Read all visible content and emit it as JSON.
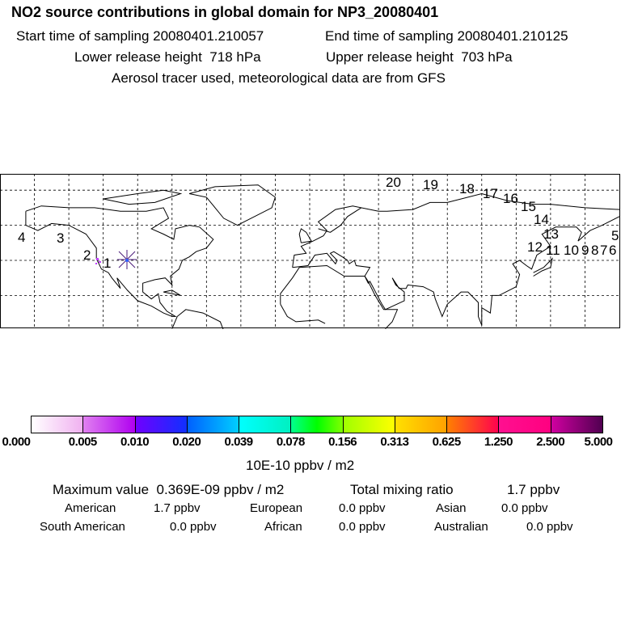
{
  "header": {
    "title": "NO2 source contributions in global domain for NP3_20080401",
    "start_label": "Start time of sampling",
    "start_value": "20080401.210057",
    "end_label": "End time of sampling",
    "end_value": "20080401.210125",
    "lower_label": "Lower release height",
    "lower_value": "718 hPa",
    "upper_label": "Upper release height",
    "upper_value": "703 hPa",
    "tracer_note": "Aerosol tracer used, meteorological data are from GFS"
  },
  "map": {
    "trajectory_labels": [
      "1",
      "2",
      "3",
      "4",
      "5",
      "6",
      "7",
      "8",
      "9",
      "10",
      "11",
      "12",
      "13",
      "14",
      "15",
      "16",
      "17",
      "18",
      "19",
      "20"
    ],
    "release_marker": "release-point-star",
    "colors": {
      "coast": "#000000",
      "grid": "#000000",
      "marker": "#6a1a8a",
      "hotspot": "#c040ff"
    }
  },
  "colorbar": {
    "labels": [
      "0.000",
      "0.005",
      "0.010",
      "0.020",
      "0.039",
      "0.078",
      "0.156",
      "0.313",
      "0.625",
      "1.250",
      "2.500",
      "5.000"
    ],
    "colors": [
      [
        "#ffffff",
        "#f0b0f0"
      ],
      [
        "#e080f0",
        "#b000f0"
      ],
      [
        "#7000ff",
        "#1030ff"
      ],
      [
        "#0060ff",
        "#00d0ff"
      ],
      [
        "#00ffff",
        "#00f0c0"
      ],
      [
        "#00ff90",
        "#00ff00",
        "#80ff00"
      ],
      [
        "#a0ff00",
        "#ffff00"
      ],
      [
        "#ffe000",
        "#ffa000"
      ],
      [
        "#ff8000",
        "#ff0050"
      ],
      [
        "#ff1090",
        "#ff0080"
      ],
      [
        "#d000a0",
        "#500050"
      ]
    ],
    "unit": "10E-10 ppbv / m2"
  },
  "stats": {
    "max_label": "Maximum value",
    "max_value": "0.369E-09 ppbv / m2",
    "total_label": "Total mixing ratio",
    "total_value": "1.7 ppbv",
    "regions": [
      {
        "name": "American",
        "value": "1.7 ppbv"
      },
      {
        "name": "European",
        "value": "0.0 ppbv"
      },
      {
        "name": "Asian",
        "value": "0.0 ppbv"
      },
      {
        "name": "South American",
        "value": "0.0 ppbv"
      },
      {
        "name": "African",
        "value": "0.0 ppbv"
      },
      {
        "name": "Australian",
        "value": "0.0 ppbv"
      }
    ]
  }
}
